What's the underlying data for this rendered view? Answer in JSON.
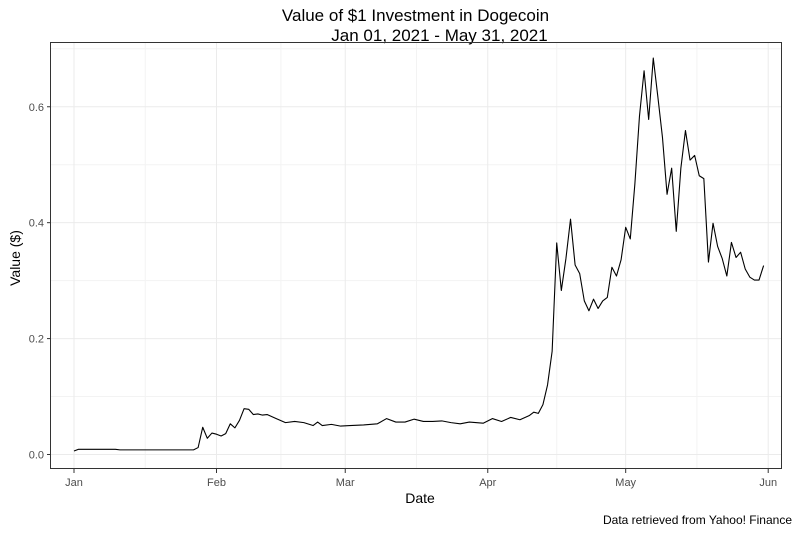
{
  "chart_data": {
    "type": "line",
    "title": "Value of $1 Investment in Dogecoin",
    "subtitle": "Jan 01, 2021 - May 31, 2021",
    "xlabel": "Date",
    "ylabel": "Value ($)",
    "caption": "Data retrieved from Yahoo! Finance",
    "xlim": [
      "2020-12-27",
      "2021-06-04"
    ],
    "ylim": [
      -0.025,
      0.71
    ],
    "x_ticks": [
      {
        "date": "2021-01-01",
        "label": "Jan"
      },
      {
        "date": "2021-02-01",
        "label": "Feb"
      },
      {
        "date": "2021-03-01",
        "label": "Mar"
      },
      {
        "date": "2021-04-01",
        "label": "Apr"
      },
      {
        "date": "2021-05-01",
        "label": "May"
      },
      {
        "date": "2021-06-01",
        "label": "Jun"
      }
    ],
    "y_ticks": [
      0.0,
      0.2,
      0.4,
      0.6
    ],
    "y_tick_labels": [
      "0.0",
      "0.2",
      "0.4",
      "0.6"
    ],
    "grid": true,
    "colors": {
      "line": "#000000",
      "grid": "#ebebeb",
      "panel_border": "#333333"
    },
    "series": [
      {
        "x": [
          "2021-01-01",
          "2021-01-02",
          "2021-01-05",
          "2021-01-10",
          "2021-01-11",
          "2021-01-15",
          "2021-01-20",
          "2021-01-25",
          "2021-01-27",
          "2021-01-28",
          "2021-01-29",
          "2021-01-30",
          "2021-01-31",
          "2021-02-01",
          "2021-02-02",
          "2021-02-03",
          "2021-02-04",
          "2021-02-05",
          "2021-02-06",
          "2021-02-07",
          "2021-02-08",
          "2021-02-09",
          "2021-02-10",
          "2021-02-11",
          "2021-02-12",
          "2021-02-14",
          "2021-02-16",
          "2021-02-18",
          "2021-02-20",
          "2021-02-22",
          "2021-02-23",
          "2021-02-24",
          "2021-02-26",
          "2021-02-28",
          "2021-03-02",
          "2021-03-05",
          "2021-03-08",
          "2021-03-10",
          "2021-03-12",
          "2021-03-14",
          "2021-03-16",
          "2021-03-18",
          "2021-03-20",
          "2021-03-22",
          "2021-03-24",
          "2021-03-26",
          "2021-03-28",
          "2021-03-31",
          "2021-04-02",
          "2021-04-04",
          "2021-04-06",
          "2021-04-08",
          "2021-04-10",
          "2021-04-11",
          "2021-04-12",
          "2021-04-13",
          "2021-04-14",
          "2021-04-15",
          "2021-04-16",
          "2021-04-17",
          "2021-04-18",
          "2021-04-19",
          "2021-04-20",
          "2021-04-21",
          "2021-04-22",
          "2021-04-23",
          "2021-04-24",
          "2021-04-25",
          "2021-04-26",
          "2021-04-27",
          "2021-04-28",
          "2021-04-29",
          "2021-04-30",
          "2021-05-01",
          "2021-05-02",
          "2021-05-03",
          "2021-05-04",
          "2021-05-05",
          "2021-05-06",
          "2021-05-07",
          "2021-05-08",
          "2021-05-09",
          "2021-05-10",
          "2021-05-11",
          "2021-05-12",
          "2021-05-13",
          "2021-05-14",
          "2021-05-15",
          "2021-05-16",
          "2021-05-17",
          "2021-05-18",
          "2021-05-19",
          "2021-05-20",
          "2021-05-21",
          "2021-05-22",
          "2021-05-23",
          "2021-05-24",
          "2021-05-25",
          "2021-05-26",
          "2021-05-27",
          "2021-05-28",
          "2021-05-29",
          "2021-05-30",
          "2021-05-31"
        ],
        "y": [
          0.006,
          0.009,
          0.009,
          0.009,
          0.008,
          0.008,
          0.008,
          0.008,
          0.008,
          0.012,
          0.047,
          0.028,
          0.037,
          0.035,
          0.032,
          0.036,
          0.053,
          0.046,
          0.059,
          0.079,
          0.078,
          0.069,
          0.07,
          0.068,
          0.069,
          0.062,
          0.055,
          0.057,
          0.055,
          0.05,
          0.056,
          0.05,
          0.052,
          0.049,
          0.05,
          0.051,
          0.053,
          0.062,
          0.056,
          0.056,
          0.061,
          0.057,
          0.057,
          0.058,
          0.055,
          0.053,
          0.056,
          0.054,
          0.062,
          0.057,
          0.064,
          0.06,
          0.067,
          0.073,
          0.071,
          0.086,
          0.12,
          0.178,
          0.365,
          0.283,
          0.338,
          0.406,
          0.327,
          0.312,
          0.265,
          0.248,
          0.268,
          0.252,
          0.265,
          0.271,
          0.323,
          0.308,
          0.336,
          0.392,
          0.372,
          0.467,
          0.584,
          0.662,
          0.578,
          0.684,
          0.617,
          0.547,
          0.449,
          0.494,
          0.385,
          0.494,
          0.559,
          0.508,
          0.516,
          0.481,
          0.476,
          0.332,
          0.399,
          0.359,
          0.338,
          0.308,
          0.366,
          0.34,
          0.349,
          0.32,
          0.306,
          0.301,
          0.301,
          0.326
        ]
      }
    ]
  }
}
